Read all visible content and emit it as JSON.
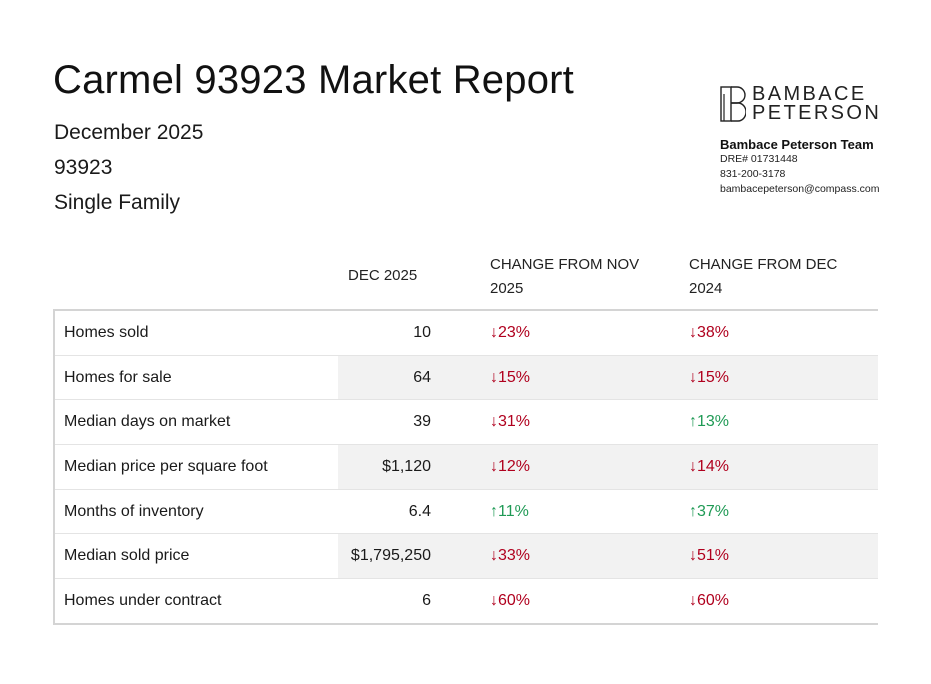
{
  "header": {
    "title": "Carmel 93923 Market Report",
    "period": "December 2025",
    "zip": "93923",
    "property_type": "Single Family"
  },
  "brand": {
    "logo_line1": "BAMBACE",
    "logo_line2": "PETERSON",
    "team": "Bambace Peterson Team",
    "dre": "DRE# 01731448",
    "phone": "831-200-3178",
    "email": "bambacepeterson@compass.com"
  },
  "table": {
    "col_current": "DEC 2025",
    "col_prev_month": "CHANGE FROM NOV 2025",
    "col_prev_year": "CHANGE FROM DEC 2024",
    "rows": [
      {
        "label": "Homes sold",
        "value": "10",
        "nov": "↓23%",
        "nov_dir": "down",
        "dec": "↓38%",
        "dec_dir": "down"
      },
      {
        "label": "Homes for sale",
        "value": "64",
        "nov": "↓15%",
        "nov_dir": "down",
        "dec": "↓15%",
        "dec_dir": "down"
      },
      {
        "label": "Median days on market",
        "value": "39",
        "nov": "↓31%",
        "nov_dir": "down",
        "dec": "↑13%",
        "dec_dir": "up"
      },
      {
        "label": "Median price per square foot",
        "value": "$1,120",
        "nov": "↓12%",
        "nov_dir": "down",
        "dec": "↓14%",
        "dec_dir": "down"
      },
      {
        "label": "Months of inventory",
        "value": "6.4",
        "nov": "↑11%",
        "nov_dir": "up",
        "dec": "↑37%",
        "dec_dir": "up"
      },
      {
        "label": "Median sold price",
        "value": "$1,795,250",
        "nov": "↓33%",
        "nov_dir": "down",
        "dec": "↓51%",
        "dec_dir": "down"
      },
      {
        "label": "Homes under contract",
        "value": "6",
        "nov": "↓60%",
        "nov_dir": "down",
        "dec": "↓60%",
        "dec_dir": "down"
      }
    ]
  },
  "colors": {
    "decrease": "#b0001e",
    "increase": "#1f9a55"
  }
}
